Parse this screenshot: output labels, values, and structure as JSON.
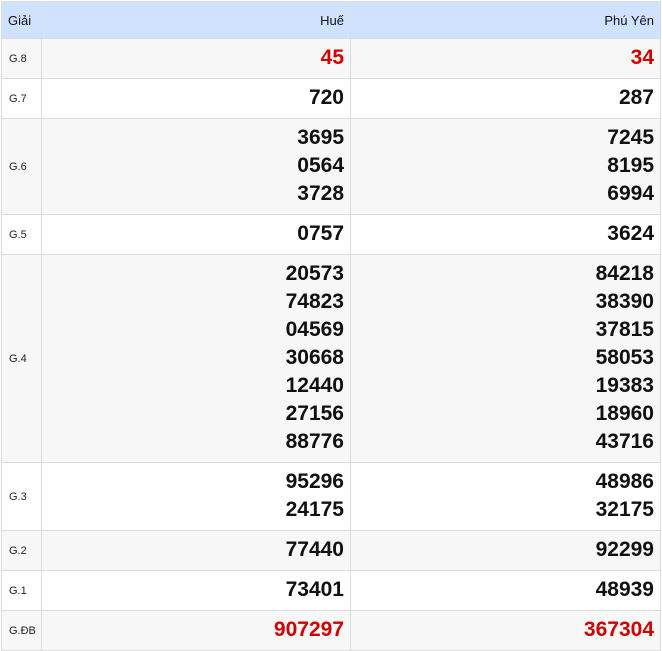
{
  "header": {
    "label": "Giải",
    "provinces": [
      "Huế",
      "Phú Yên"
    ]
  },
  "colors": {
    "header_bg": "#cfe2ff",
    "highlight": "#d00000"
  },
  "rows": [
    {
      "prize": "G.8",
      "highlight": true,
      "values": [
        [
          "45"
        ],
        [
          "34"
        ]
      ]
    },
    {
      "prize": "G.7",
      "highlight": false,
      "values": [
        [
          "720"
        ],
        [
          "287"
        ]
      ]
    },
    {
      "prize": "G.6",
      "highlight": false,
      "values": [
        [
          "3695",
          "0564",
          "3728"
        ],
        [
          "7245",
          "8195",
          "6994"
        ]
      ]
    },
    {
      "prize": "G.5",
      "highlight": false,
      "values": [
        [
          "0757"
        ],
        [
          "3624"
        ]
      ]
    },
    {
      "prize": "G.4",
      "highlight": false,
      "values": [
        [
          "20573",
          "74823",
          "04569",
          "30668",
          "12440",
          "27156",
          "88776"
        ],
        [
          "84218",
          "38390",
          "37815",
          "58053",
          "19383",
          "18960",
          "43716"
        ]
      ]
    },
    {
      "prize": "G.3",
      "highlight": false,
      "values": [
        [
          "95296",
          "24175"
        ],
        [
          "48986",
          "32175"
        ]
      ]
    },
    {
      "prize": "G.2",
      "highlight": false,
      "values": [
        [
          "77440"
        ],
        [
          "92299"
        ]
      ]
    },
    {
      "prize": "G.1",
      "highlight": false,
      "values": [
        [
          "73401"
        ],
        [
          "48939"
        ]
      ]
    },
    {
      "prize": "G.ĐB",
      "highlight": true,
      "values": [
        [
          "907297"
        ],
        [
          "367304"
        ]
      ]
    }
  ]
}
